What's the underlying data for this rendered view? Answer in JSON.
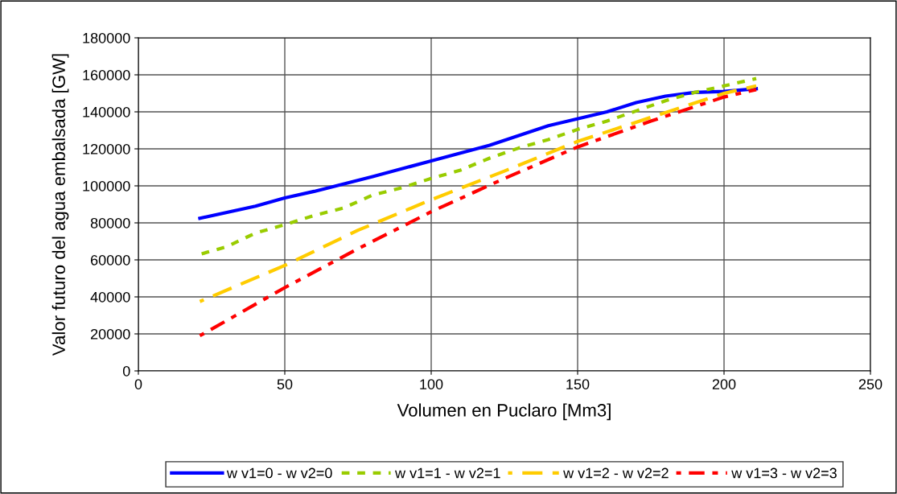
{
  "chart_data": {
    "type": "line",
    "xlabel": "Volumen en Puclaro [Mm3]",
    "ylabel": "Valor futuro del agua embalsada [GW]",
    "xlim": [
      0,
      250
    ],
    "xticks": [
      0,
      50,
      100,
      150,
      200,
      250
    ],
    "ylim": [
      0,
      180000
    ],
    "yticks": [
      0,
      20000,
      40000,
      60000,
      80000,
      100000,
      120000,
      140000,
      160000,
      180000
    ],
    "grid": true,
    "legend": "bottom",
    "marker": "none",
    "series": [
      {
        "name": "w v1=0 - w v2=0",
        "color": "#0000ff",
        "line_style": "solid",
        "x": [
          21,
          40,
          50,
          60,
          80,
          100,
          120,
          140,
          160,
          170,
          180,
          190,
          200,
          211
        ],
        "values": [
          82500,
          89000,
          93500,
          97000,
          105000,
          113500,
          122000,
          132500,
          140000,
          145000,
          148500,
          150500,
          151000,
          152500
        ]
      },
      {
        "name": "w v1=1 - w v2=1",
        "color": "#99cc00",
        "line_style": "dotted",
        "x": [
          21,
          30,
          40,
          50,
          60,
          70,
          80,
          90,
          100,
          110,
          120,
          130,
          140,
          150,
          160,
          170,
          180,
          190,
          200,
          211
        ],
        "values": [
          63000,
          67000,
          74500,
          79000,
          84000,
          88000,
          95000,
          99000,
          104000,
          108500,
          115000,
          120500,
          125000,
          130500,
          135000,
          140500,
          146000,
          150500,
          154000,
          158000
        ]
      },
      {
        "name": "w v1=2 - w v2=2",
        "color": "#ffcc00",
        "line_style": "dashed",
        "x": [
          21,
          50,
          75,
          100,
          125,
          150,
          175,
          200,
          211
        ],
        "values": [
          37500,
          57000,
          76000,
          92500,
          108000,
          124000,
          137000,
          150000,
          154000
        ]
      },
      {
        "name": "w v1=3 - w v2=3",
        "color": "#ff0000",
        "line_style": "dashdot",
        "x": [
          21,
          50,
          75,
          100,
          125,
          150,
          175,
          200,
          211
        ],
        "values": [
          19000,
          45000,
          66000,
          86000,
          104000,
          121000,
          135000,
          148000,
          152000
        ]
      }
    ]
  }
}
